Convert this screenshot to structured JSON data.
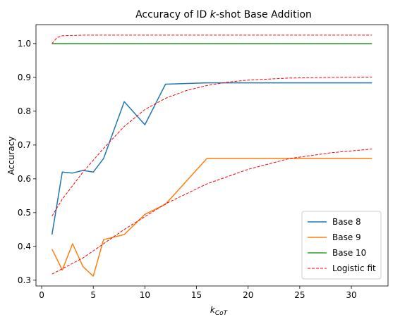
{
  "chart_data": {
    "type": "line",
    "title_prefix": "Accuracy of ID ",
    "title_italic": "k",
    "title_suffix": "-shot Base Addition",
    "xlabel_main": "k",
    "xlabel_sub": "CoT",
    "ylabel": "Accuracy",
    "xlim": [
      -0.55,
      33.55
    ],
    "ylim": [
      0.283,
      1.056
    ],
    "xticks": [
      0,
      5,
      10,
      15,
      20,
      25,
      30
    ],
    "yticks": [
      0.3,
      0.4,
      0.5,
      0.6,
      0.7,
      0.8,
      0.9,
      1.0
    ],
    "ytick_labels": [
      "0.3",
      "0.4",
      "0.5",
      "0.6",
      "0.7",
      "0.8",
      "0.9",
      "1.0"
    ],
    "legend_position": "lower right",
    "series": [
      {
        "name": "Base 8",
        "color": "#1f77b4",
        "style": "solid",
        "x": [
          1,
          2,
          3,
          4,
          5,
          6,
          8,
          10,
          12,
          16,
          32
        ],
        "y": [
          0.435,
          0.62,
          0.617,
          0.625,
          0.62,
          0.66,
          0.828,
          0.76,
          0.88,
          0.884,
          0.884
        ]
      },
      {
        "name": "Base 9",
        "color": "#ff7f0e",
        "style": "solid",
        "x": [
          1,
          2,
          3,
          4,
          5,
          6,
          8,
          10,
          12,
          16,
          32
        ],
        "y": [
          0.392,
          0.33,
          0.408,
          0.34,
          0.312,
          0.42,
          0.435,
          0.495,
          0.525,
          0.66,
          0.66
        ]
      },
      {
        "name": "Base 10",
        "color": "#2ca02c",
        "style": "solid",
        "x": [
          1,
          32
        ],
        "y": [
          1.0,
          1.0
        ]
      },
      {
        "name": "Logistic fit",
        "color": "#ff0000",
        "style": "dashed",
        "fits": [
          {
            "x": [
              1,
              1.5,
              2,
              3,
              4,
              6,
              32
            ],
            "y": [
              1.0,
              1.018,
              1.023,
              1.024,
              1.025,
              1.025,
              1.025
            ]
          },
          {
            "x": [
              1,
              2,
              4,
              6,
              8,
              10,
              12,
              14,
              16,
              18,
              20,
              24,
              28,
              32
            ],
            "y": [
              0.49,
              0.54,
              0.62,
              0.69,
              0.755,
              0.805,
              0.838,
              0.861,
              0.876,
              0.886,
              0.892,
              0.898,
              0.9,
              0.901
            ]
          },
          {
            "x": [
              1,
              4,
              8,
              12,
              16,
              20,
              24,
              28,
              32
            ],
            "y": [
              0.318,
              0.366,
              0.45,
              0.526,
              0.585,
              0.628,
              0.66,
              0.677,
              0.688
            ]
          }
        ]
      }
    ]
  }
}
